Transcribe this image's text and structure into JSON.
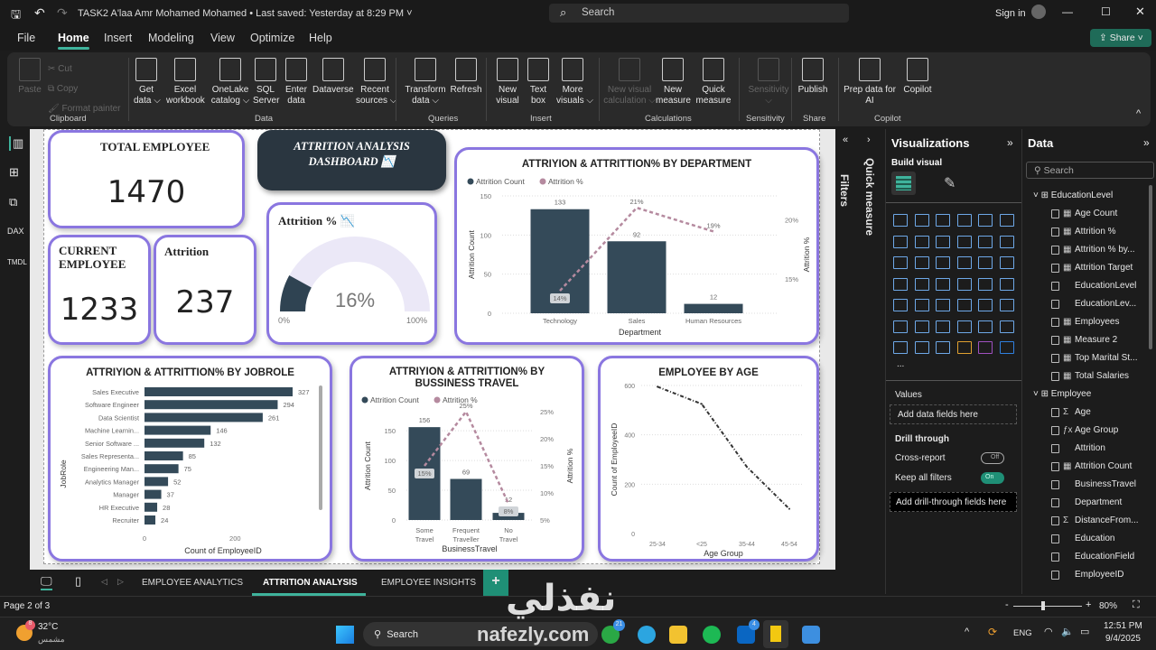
{
  "titlebar": {
    "doc_title": "TASK2 A'laa Amr Mohamed Mohamed",
    "saved": "Last saved: Yesterday at 8:29 PM",
    "search_placeholder": "Search",
    "sign_in": "Sign in",
    "share": "Share"
  },
  "menu": [
    "File",
    "Home",
    "Insert",
    "Modeling",
    "View",
    "Optimize",
    "Help"
  ],
  "ribbon": {
    "clipboard": {
      "paste": "Paste",
      "cut": "Cut",
      "copy": "Copy",
      "format_painter": "Format painter",
      "group": "Clipboard"
    },
    "buttons": [
      {
        "l1": "Get",
        "l2": "data ⌵",
        "group": "Data"
      },
      {
        "l1": "Excel",
        "l2": "workbook"
      },
      {
        "l1": "OneLake",
        "l2": "catalog ⌵"
      },
      {
        "l1": "SQL",
        "l2": "Server"
      },
      {
        "l1": "Enter",
        "l2": "data"
      },
      {
        "l1": "Dataverse",
        "l2": ""
      },
      {
        "l1": "Recent",
        "l2": "sources ⌵"
      },
      {
        "l1": "Transform",
        "l2": "data ⌵"
      },
      {
        "l1": "Refresh",
        "l2": ""
      },
      {
        "l1": "New",
        "l2": "visual"
      },
      {
        "l1": "Text",
        "l2": "box"
      },
      {
        "l1": "More",
        "l2": "visuals ⌵"
      },
      {
        "l1": "New visual",
        "l2": "calculation ⌵"
      },
      {
        "l1": "New",
        "l2": "measure"
      },
      {
        "l1": "Quick",
        "l2": "measure"
      },
      {
        "l1": "Sensitivity",
        "l2": "⌵"
      },
      {
        "l1": "Publish",
        "l2": ""
      },
      {
        "l1": "Prep data for",
        "l2": "AI"
      },
      {
        "l1": "Copilot",
        "l2": ""
      }
    ],
    "groups": [
      "Data",
      "Queries",
      "Insert",
      "Calculations",
      "Sensitivity",
      "Share",
      "Copilot"
    ]
  },
  "kpis": {
    "total": {
      "title": "TOTAL EMPLOYEE",
      "value": "1470"
    },
    "current": {
      "title": "CURRENT EMPLOYEE",
      "value": "1233"
    },
    "attrition": {
      "title": "Attrition",
      "value": "237"
    },
    "banner": {
      "line1": "ATTRITION ANALYSIS",
      "line2": "DASHBOARD 📉"
    },
    "gauge": {
      "title": "Attrition % 📉",
      "value": 16,
      "label": "16%",
      "min": "0%",
      "max": "100%",
      "fill_color": "#2f4352",
      "track_color": "#ebe8f7"
    }
  },
  "colors": {
    "bar": "#344a59",
    "line": "#b58a9f",
    "card_border": "#8a76e0",
    "accent": "#3fb39c"
  },
  "chart_data": [
    {
      "type": "bar+line",
      "title": "ATTRIYION & ATTRITTION% BY DEPARTMENT",
      "legend": [
        "Attrition Count",
        "Attrition %"
      ],
      "legend_position": "top-left",
      "categories": [
        "Technology",
        "Sales",
        "Human Resources"
      ],
      "series": [
        {
          "name": "Attrition Count",
          "values": [
            133,
            92,
            12
          ]
        },
        {
          "name": "Attrition %",
          "values": [
            14,
            21,
            19
          ]
        }
      ],
      "xlabel": "Department",
      "ylabel": "Attrition Count",
      "y2label": "Attrition %",
      "ylim": [
        0,
        150
      ],
      "yticks": [
        "0",
        "50",
        "100",
        "150"
      ],
      "y2lim": [
        12.1,
        22
      ],
      "y2ticks": [
        "15%",
        "20%"
      ],
      "grid": true
    },
    {
      "type": "bar",
      "orientation": "horizontal",
      "title": "ATTRIYION & ATTRITTION% BY JOBROLE",
      "categories": [
        "Sales Executive",
        "Software Engineer",
        "Data Scientist",
        "Machine Learnin...",
        "Senior Software ...",
        "Sales Representa...",
        "Engineering Man...",
        "Analytics Manager",
        "Manager",
        "HR Executive",
        "Recruiter"
      ],
      "values": [
        327,
        294,
        261,
        146,
        132,
        85,
        75,
        52,
        37,
        28,
        24
      ],
      "xlabel": "Count of EmployeeID",
      "ylabel": "JobRole",
      "xticks": [
        "0",
        "200"
      ],
      "xlim": [
        0,
        327
      ]
    },
    {
      "type": "bar+line",
      "title": "ATTRIYION & ATTRITTION% BY BUSSINESS TRAVEL",
      "legend": [
        "Attrition Count",
        "Attrition %"
      ],
      "legend_position": "top-left",
      "categories": [
        "Some Travel",
        "Frequent Traveller",
        "No Travel"
      ],
      "series": [
        {
          "name": "Attrition Count",
          "values": [
            156,
            69,
            12
          ]
        },
        {
          "name": "Attrition %",
          "values": [
            15,
            25,
            8
          ]
        }
      ],
      "xlabel": "BusinessTravel",
      "ylabel": "Attrition Count",
      "y2label": "Attrition %",
      "ylim": [
        0,
        182
      ],
      "yticks": [
        "0",
        "50",
        "100",
        "150"
      ],
      "y2lim": [
        5,
        25
      ],
      "y2ticks": [
        "5%",
        "10%",
        "15%",
        "20%",
        "25%"
      ],
      "grid": true
    },
    {
      "type": "line",
      "title": "EMPLOYEE BY AGE",
      "categories": [
        "25-34",
        "<25",
        "35-44",
        "45-54"
      ],
      "values": [
        595,
        525,
        270,
        100
      ],
      "xlabel": "Age Group",
      "ylabel": "Count of EmployeeID",
      "ylim": [
        0,
        600
      ],
      "yticks": [
        "0",
        "200",
        "400",
        "600"
      ],
      "grid": true
    }
  ],
  "filters_label": "Filters",
  "quick_measure": "Quick measure",
  "viz": {
    "title": "Visualizations",
    "build_visual": "Build visual",
    "more": "...",
    "values_label": "Values",
    "add_data": "Add data fields here",
    "drill_through": "Drill through",
    "cross_report": "Cross-report",
    "cross_report_state": "Off",
    "keep_filters": "Keep all filters",
    "keep_filters_state": "On",
    "add_drill": "Add drill-through fields here",
    "icons": [
      "stacked-bar",
      "stacked-column",
      "clustered-bar",
      "clustered-column",
      "100-bar",
      "100-column",
      "line-chart",
      "area-chart",
      "stacked-area",
      "100-area",
      "line-column",
      "line-clustered-column",
      "ribbon-chart",
      "waterfall",
      "funnel",
      "scatter",
      "pie",
      "donut",
      "treemap",
      "map",
      "filled-map",
      "azure-map",
      "gauge",
      "card",
      "multi-row-card",
      "kpi",
      "slicer",
      "table",
      "matrix",
      "r-visual",
      "python-visual",
      "key-influencers",
      "decomposition-tree",
      "qa",
      "narrative",
      "metrics",
      "paginated-report",
      "power-apps",
      "power-automate",
      "visual-1",
      "visual-2",
      "visual-3"
    ]
  },
  "data_pane": {
    "title": "Data",
    "search_placeholder": "Search",
    "tables": [
      {
        "name": "EducationLevel",
        "fields": [
          {
            "n": "Age Count",
            "t": "measure"
          },
          {
            "n": "Attrition %",
            "t": "measure"
          },
          {
            "n": "Attrition % by...",
            "t": "measure"
          },
          {
            "n": "Attrition Target",
            "t": "measure"
          },
          {
            "n": "EducationLevel",
            "t": ""
          },
          {
            "n": "EducationLev...",
            "t": ""
          },
          {
            "n": "Employees",
            "t": "measure"
          },
          {
            "n": "Measure 2",
            "t": "measure"
          },
          {
            "n": "Top Marital St...",
            "t": "measure"
          },
          {
            "n": "Total Salaries",
            "t": "measure"
          }
        ]
      },
      {
        "name": "Employee",
        "fields": [
          {
            "n": "Age",
            "t": "sum"
          },
          {
            "n": "Age Group",
            "t": "calc"
          },
          {
            "n": "Attrition",
            "t": ""
          },
          {
            "n": "Attrition Count",
            "t": "measure"
          },
          {
            "n": "BusinessTravel",
            "t": ""
          },
          {
            "n": "Department",
            "t": ""
          },
          {
            "n": "DistanceFrom...",
            "t": "sum"
          },
          {
            "n": "Education",
            "t": ""
          },
          {
            "n": "EducationField",
            "t": ""
          },
          {
            "n": "EmployeeID",
            "t": ""
          }
        ]
      }
    ]
  },
  "pages": {
    "tabs": [
      "EMPLOYEE ANALYTICS",
      "ATTRITION ANALYSIS",
      "EMPLOYEE INSIGHTS"
    ],
    "active": 1,
    "add": "+",
    "status": "Page 2 of 3",
    "zoom": "80%",
    "zoom_minus": "-",
    "zoom_plus": "+"
  },
  "taskbar": {
    "temp": "32°C",
    "weather": "مشمس",
    "badge": "8",
    "search": "Search",
    "whatsapp_badge": "21",
    "linkedin_badge": "4",
    "lang": "ENG",
    "time": "12:51 PM",
    "date": "9/4/2025"
  },
  "watermark": {
    "arabic": "نفذلي",
    "latin": "nafezly.com"
  }
}
